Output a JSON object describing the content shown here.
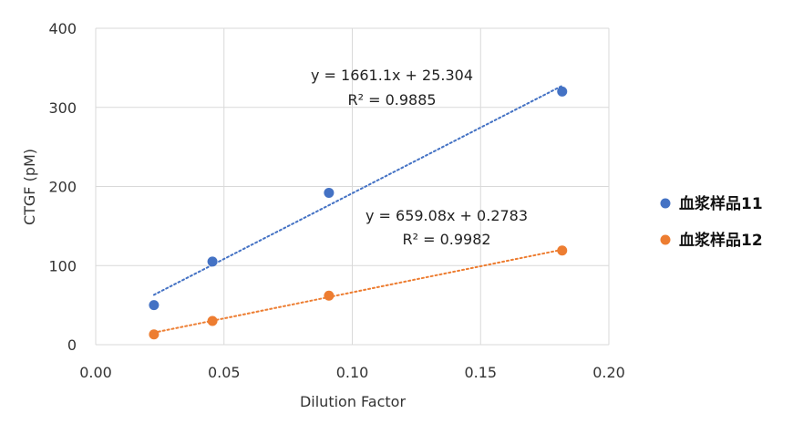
{
  "chart_data": {
    "type": "scatter",
    "title": "",
    "xlabel": "Dilution Factor",
    "ylabel": "CTGF (pM)",
    "xlim": [
      0,
      0.2
    ],
    "ylim": [
      0,
      400
    ],
    "x_ticks": [
      "0.00",
      "0.05",
      "0.10",
      "0.15",
      "0.20"
    ],
    "y_ticks": [
      "0",
      "100",
      "200",
      "300",
      "400"
    ],
    "grid": true,
    "legend_position": "right",
    "series": [
      {
        "name": "血浆样品11",
        "color": "#4472C4",
        "x": [
          0.0227,
          0.0455,
          0.0909,
          0.1818
        ],
        "y": [
          50,
          105,
          192,
          320
        ],
        "trendline": {
          "slope": 1661.1,
          "intercept": 25.304,
          "equation": "y = 1661.1x + 25.304",
          "r2": "R² = 0.9885"
        }
      },
      {
        "name": "血浆样品12",
        "color": "#ED7D31",
        "x": [
          0.0227,
          0.0455,
          0.0909,
          0.1818
        ],
        "y": [
          13,
          30,
          62,
          119
        ],
        "trendline": {
          "slope": 659.08,
          "intercept": 0.2783,
          "equation": "y = 659.08x + 0.2783",
          "r2": "R² = 0.9982"
        }
      }
    ]
  }
}
